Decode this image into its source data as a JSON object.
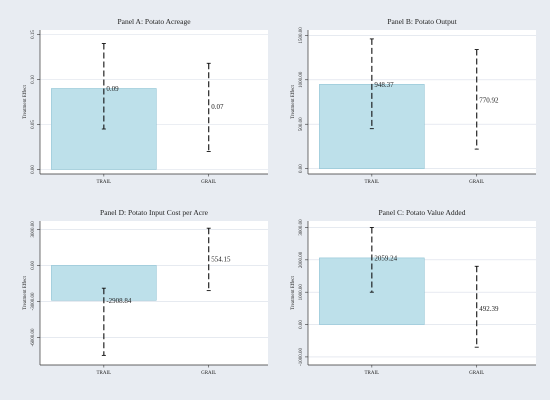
{
  "colors": {
    "figure_bg": "#e8ecf2",
    "plot_bg": "#ffffff",
    "bar_fill": "#bde0ea",
    "bar_stroke": "#8fc3d4",
    "grid": "#d8dee8",
    "ci": "#111111",
    "axis": "#333333"
  },
  "chart_data": [
    {
      "type": "bar",
      "title": "Panel A: Potato Acreage",
      "ylabel": "Treatment Effect",
      "categories": [
        "TRAIL",
        "GRAIL"
      ],
      "values": [
        0.09,
        0.07
      ],
      "value_labels": [
        "0.09",
        "0.07"
      ],
      "ci_low": [
        0.045,
        0.02
      ],
      "ci_high": [
        0.14,
        0.118
      ],
      "bars_drawn": [
        true,
        false
      ],
      "ylim": [
        -0.005,
        0.155
      ],
      "yticks": [
        0,
        0.05,
        0.1,
        0.15
      ],
      "ytick_labels": [
        "0.00",
        "0.05",
        "0.10",
        "0.15"
      ],
      "grid": true
    },
    {
      "type": "bar",
      "title": "Panel B: Potato Output",
      "ylabel": "Treatment Effect",
      "categories": [
        "TRAIL",
        "GRAIL"
      ],
      "values": [
        948.37,
        770.92
      ],
      "value_labels": [
        "948.37",
        "770.92"
      ],
      "ci_low": [
        450,
        220
      ],
      "ci_high": [
        1460,
        1340
      ],
      "bars_drawn": [
        true,
        false
      ],
      "ylim": [
        -60,
        1560
      ],
      "yticks": [
        0,
        500,
        1000,
        1500
      ],
      "ytick_labels": [
        "0.00",
        "500.00",
        "1000.00",
        "1500.00"
      ],
      "grid": true
    },
    {
      "type": "bar",
      "title": "Panel D: Potato Input Cost per Acre",
      "ylabel": "Treatment Effect",
      "categories": [
        "TRAIL",
        "GRAIL"
      ],
      "values": [
        -2908.84,
        554.15
      ],
      "value_labels": [
        "-2908.84",
        "554.15"
      ],
      "ci_low": [
        -7500,
        -2100
      ],
      "ci_high": [
        -1900,
        3100
      ],
      "bars_drawn": [
        true,
        false
      ],
      "ylim": [
        -8300,
        3700
      ],
      "yticks": [
        -6000,
        -3000,
        0,
        3000
      ],
      "ytick_labels": [
        "-6000.00",
        "-3000.00",
        "0.00",
        "3000.00"
      ],
      "grid": true
    },
    {
      "type": "bar",
      "title": "Panel C: Potato Value Added",
      "ylabel": "Treatment Effect",
      "categories": [
        "TRAIL",
        "GRAIL"
      ],
      "values": [
        2059.24,
        492.39
      ],
      "value_labels": [
        "2059.24",
        "492.39"
      ],
      "ci_low": [
        1000,
        -700
      ],
      "ci_high": [
        3000,
        1800
      ],
      "bars_drawn": [
        true,
        false
      ],
      "ylim": [
        -1250,
        3200
      ],
      "yticks": [
        -1000,
        0,
        1000,
        2000,
        3000
      ],
      "ytick_labels": [
        "-1000.00",
        "0.00",
        "1000.00",
        "2000.00",
        "3000.00"
      ],
      "grid": true
    }
  ]
}
